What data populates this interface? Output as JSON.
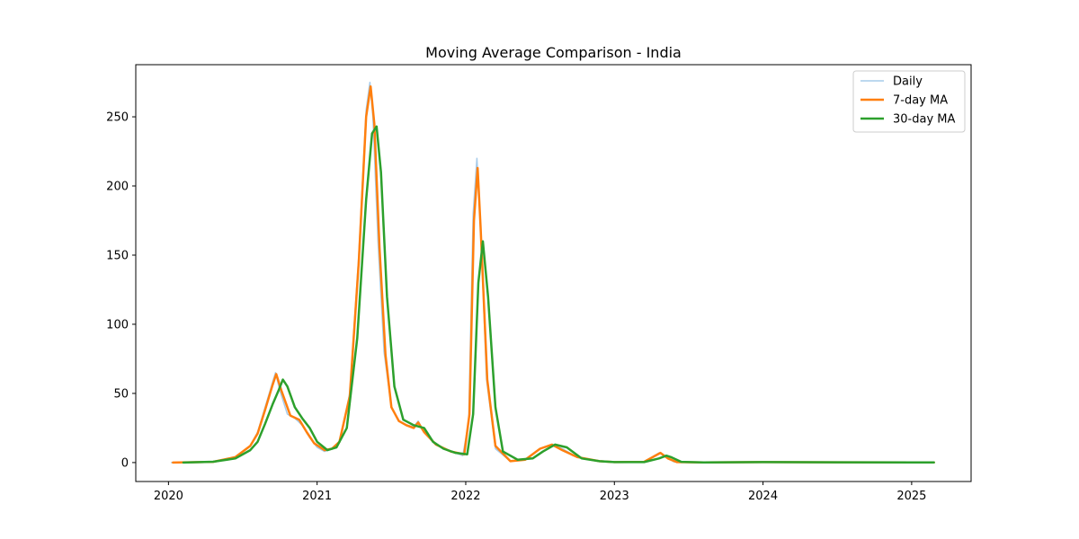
{
  "chart_data": {
    "type": "line",
    "title": "Moving Average Comparison - India",
    "xlabel": "",
    "ylabel": "",
    "x_range": [
      2019.78,
      2025.4
    ],
    "ylim": [
      -13.7,
      287.7
    ],
    "x_ticks": [
      {
        "value": 2020,
        "label": "2020"
      },
      {
        "value": 2021,
        "label": "2021"
      },
      {
        "value": 2022,
        "label": "2022"
      },
      {
        "value": 2023,
        "label": "2023"
      },
      {
        "value": 2024,
        "label": "2024"
      },
      {
        "value": 2025,
        "label": "2025"
      }
    ],
    "y_ticks": [
      {
        "value": 0,
        "label": "0"
      },
      {
        "value": 50,
        "label": "50"
      },
      {
        "value": 100,
        "label": "100"
      },
      {
        "value": 150,
        "label": "150"
      },
      {
        "value": 200,
        "label": "200"
      },
      {
        "value": 250,
        "label": "250"
      }
    ],
    "grid": false,
    "legend_position": "top-right",
    "series": [
      {
        "name": "Daily",
        "color": "#a6cbea",
        "points": [
          [
            2020.02,
            0
          ],
          [
            2020.3,
            0.5
          ],
          [
            2020.45,
            4
          ],
          [
            2020.55,
            12
          ],
          [
            2020.6,
            22
          ],
          [
            2020.65,
            40
          ],
          [
            2020.7,
            58
          ],
          [
            2020.72,
            65
          ],
          [
            2020.75,
            52
          ],
          [
            2020.8,
            35
          ],
          [
            2020.85,
            32
          ],
          [
            2020.9,
            27
          ],
          [
            2020.95,
            18
          ],
          [
            2021.0,
            11
          ],
          [
            2021.05,
            8
          ],
          [
            2021.1,
            10
          ],
          [
            2021.15,
            15
          ],
          [
            2021.22,
            50
          ],
          [
            2021.28,
            150
          ],
          [
            2021.33,
            255
          ],
          [
            2021.355,
            275
          ],
          [
            2021.375,
            250
          ],
          [
            2021.41,
            160
          ],
          [
            2021.45,
            80
          ],
          [
            2021.5,
            40
          ],
          [
            2021.55,
            30
          ],
          [
            2021.6,
            27
          ],
          [
            2021.65,
            26
          ],
          [
            2021.68,
            30
          ],
          [
            2021.72,
            22
          ],
          [
            2021.8,
            13
          ],
          [
            2021.9,
            8
          ],
          [
            2021.98,
            5
          ],
          [
            2022.02,
            30
          ],
          [
            2022.05,
            180
          ],
          [
            2022.075,
            220
          ],
          [
            2022.1,
            170
          ],
          [
            2022.14,
            60
          ],
          [
            2022.2,
            10
          ],
          [
            2022.3,
            1
          ],
          [
            2022.4,
            2
          ],
          [
            2022.5,
            10
          ],
          [
            2022.58,
            13
          ],
          [
            2022.65,
            10
          ],
          [
            2022.75,
            4
          ],
          [
            2022.9,
            1
          ],
          [
            2023.0,
            0.3
          ],
          [
            2023.2,
            0.5
          ],
          [
            2023.3,
            7
          ],
          [
            2023.35,
            4
          ],
          [
            2023.4,
            0.5
          ],
          [
            2023.6,
            0.2
          ],
          [
            2024.0,
            0.3
          ],
          [
            2024.5,
            0.2
          ],
          [
            2025.15,
            0.1
          ]
        ]
      },
      {
        "name": "7-day MA",
        "color": "#ff7f0e",
        "points": [
          [
            2020.03,
            0
          ],
          [
            2020.3,
            0.5
          ],
          [
            2020.45,
            4
          ],
          [
            2020.55,
            12
          ],
          [
            2020.6,
            21
          ],
          [
            2020.65,
            38
          ],
          [
            2020.7,
            56
          ],
          [
            2020.725,
            64
          ],
          [
            2020.76,
            52
          ],
          [
            2020.82,
            34
          ],
          [
            2020.88,
            31
          ],
          [
            2020.93,
            22
          ],
          [
            2020.98,
            14
          ],
          [
            2021.05,
            9
          ],
          [
            2021.1,
            10
          ],
          [
            2021.15,
            15
          ],
          [
            2021.22,
            48
          ],
          [
            2021.28,
            145
          ],
          [
            2021.33,
            250
          ],
          [
            2021.36,
            272
          ],
          [
            2021.385,
            245
          ],
          [
            2021.42,
            155
          ],
          [
            2021.46,
            78
          ],
          [
            2021.5,
            40
          ],
          [
            2021.55,
            30
          ],
          [
            2021.6,
            27
          ],
          [
            2021.65,
            25
          ],
          [
            2021.68,
            29
          ],
          [
            2021.72,
            22
          ],
          [
            2021.8,
            13
          ],
          [
            2021.9,
            8
          ],
          [
            2021.99,
            6
          ],
          [
            2022.025,
            35
          ],
          [
            2022.055,
            175
          ],
          [
            2022.08,
            213
          ],
          [
            2022.1,
            170
          ],
          [
            2022.145,
            60
          ],
          [
            2022.2,
            12
          ],
          [
            2022.3,
            1
          ],
          [
            2022.4,
            2
          ],
          [
            2022.5,
            10
          ],
          [
            2022.58,
            13
          ],
          [
            2022.65,
            9
          ],
          [
            2022.75,
            4
          ],
          [
            2022.9,
            1
          ],
          [
            2023.0,
            0.3
          ],
          [
            2023.2,
            0.5
          ],
          [
            2023.31,
            7
          ],
          [
            2023.36,
            3
          ],
          [
            2023.42,
            0.3
          ],
          [
            2023.6,
            0.1
          ],
          [
            2024.0,
            0.3
          ],
          [
            2024.5,
            0.2
          ],
          [
            2025.15,
            0.1
          ]
        ]
      },
      {
        "name": "30-day MA",
        "color": "#2ca02c",
        "points": [
          [
            2020.1,
            0
          ],
          [
            2020.3,
            0.6
          ],
          [
            2020.45,
            3
          ],
          [
            2020.55,
            9
          ],
          [
            2020.6,
            15
          ],
          [
            2020.65,
            28
          ],
          [
            2020.7,
            42
          ],
          [
            2020.74,
            52
          ],
          [
            2020.77,
            60
          ],
          [
            2020.8,
            55
          ],
          [
            2020.85,
            40
          ],
          [
            2020.9,
            32
          ],
          [
            2020.95,
            25
          ],
          [
            2021.0,
            15
          ],
          [
            2021.07,
            9
          ],
          [
            2021.13,
            11
          ],
          [
            2021.2,
            25
          ],
          [
            2021.27,
            90
          ],
          [
            2021.33,
            190
          ],
          [
            2021.37,
            238
          ],
          [
            2021.4,
            243
          ],
          [
            2021.43,
            210
          ],
          [
            2021.47,
            120
          ],
          [
            2021.52,
            55
          ],
          [
            2021.58,
            31
          ],
          [
            2021.65,
            27
          ],
          [
            2021.72,
            25
          ],
          [
            2021.78,
            15
          ],
          [
            2021.85,
            10
          ],
          [
            2021.93,
            7
          ],
          [
            2022.01,
            6
          ],
          [
            2022.05,
            35
          ],
          [
            2022.085,
            130
          ],
          [
            2022.115,
            160
          ],
          [
            2022.15,
            120
          ],
          [
            2022.2,
            40
          ],
          [
            2022.25,
            8
          ],
          [
            2022.35,
            2
          ],
          [
            2022.45,
            3
          ],
          [
            2022.52,
            8
          ],
          [
            2022.6,
            13
          ],
          [
            2022.68,
            11
          ],
          [
            2022.78,
            3
          ],
          [
            2022.9,
            1
          ],
          [
            2023.0,
            0.3
          ],
          [
            2023.2,
            0.3
          ],
          [
            2023.3,
            3
          ],
          [
            2023.35,
            5
          ],
          [
            2023.38,
            4
          ],
          [
            2023.45,
            0.5
          ],
          [
            2023.6,
            0.1
          ],
          [
            2024.0,
            0.3
          ],
          [
            2024.5,
            0.2
          ],
          [
            2025.15,
            0.1
          ]
        ]
      }
    ]
  }
}
